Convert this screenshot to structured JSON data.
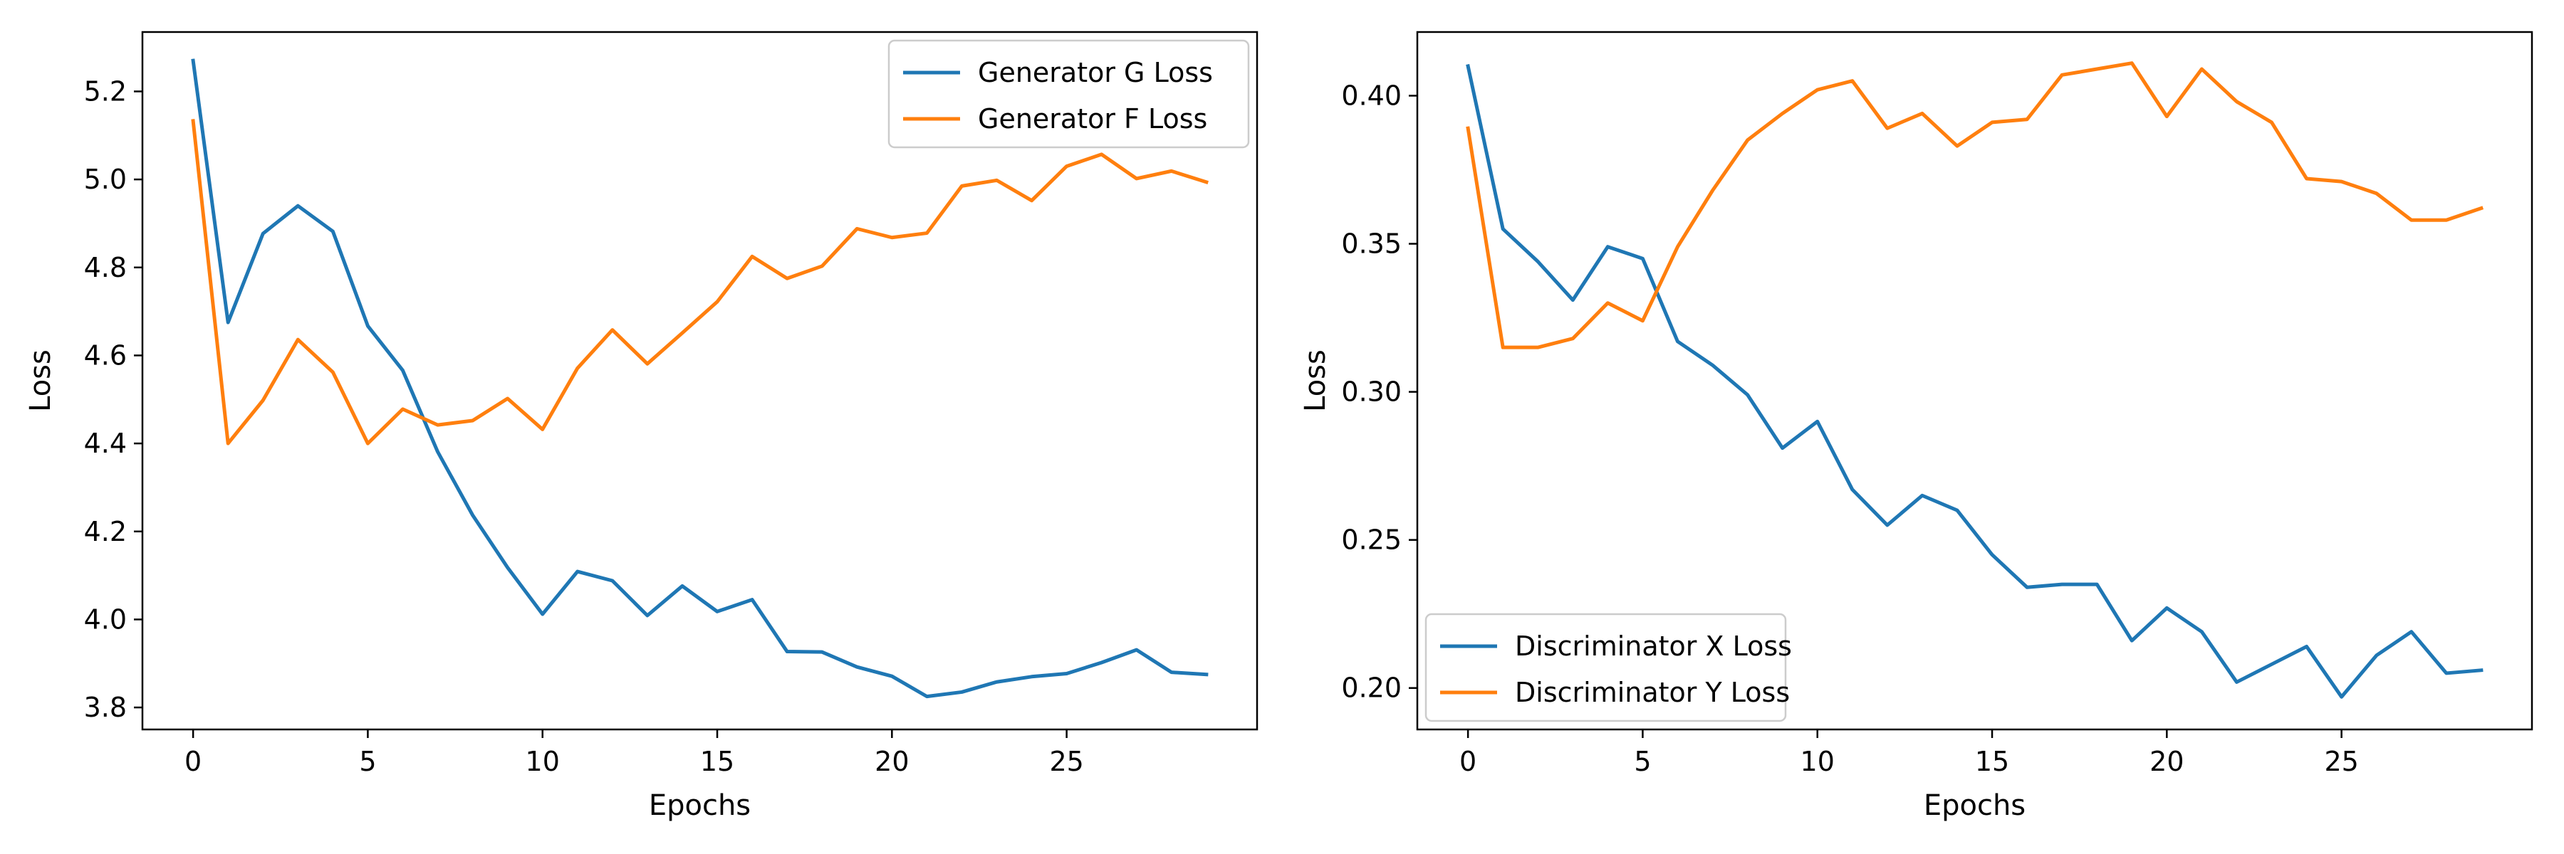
{
  "chart_data": [
    {
      "type": "line",
      "xlabel": "Epochs",
      "ylabel": "Loss",
      "xlim": [
        -1.45,
        30.45
      ],
      "ylim": [
        3.75,
        5.335
      ],
      "xticks": [
        0,
        5,
        10,
        15,
        20,
        25
      ],
      "yticks": [
        3.8,
        4.0,
        4.2,
        4.4,
        4.6,
        4.8,
        5.0,
        5.2
      ],
      "ytick_decimals": 1,
      "grid": false,
      "legend_position": "top-right",
      "x": [
        0,
        1,
        2,
        3,
        4,
        5,
        6,
        7,
        8,
        9,
        10,
        11,
        12,
        13,
        14,
        15,
        16,
        17,
        18,
        19,
        20,
        21,
        22,
        23,
        24,
        25,
        26,
        27,
        28,
        29
      ],
      "series": [
        {
          "name": "Generator G Loss",
          "color": "#1f77b4",
          "values": [
            5.27,
            4.675,
            4.877,
            4.94,
            4.882,
            4.667,
            4.566,
            4.381,
            4.237,
            4.118,
            4.012,
            4.109,
            4.088,
            4.009,
            4.076,
            4.018,
            4.045,
            3.927,
            3.926,
            3.892,
            3.871,
            3.825,
            3.835,
            3.858,
            3.87,
            3.877,
            3.902,
            3.931,
            3.88,
            3.875
          ]
        },
        {
          "name": "Generator F Loss",
          "color": "#ff7f0e",
          "values": [
            5.133,
            4.4,
            4.498,
            4.636,
            4.562,
            4.4,
            4.478,
            4.442,
            4.452,
            4.502,
            4.432,
            4.571,
            4.658,
            4.581,
            4.651,
            4.722,
            4.825,
            4.775,
            4.803,
            4.888,
            4.868,
            4.878,
            4.985,
            4.998,
            4.952,
            5.03,
            5.057,
            5.002,
            5.019,
            4.994
          ]
        }
      ]
    },
    {
      "type": "line",
      "xlabel": "Epochs",
      "ylabel": "Loss",
      "xlim": [
        -1.45,
        30.45
      ],
      "ylim": [
        0.186,
        0.4215
      ],
      "xticks": [
        0,
        5,
        10,
        15,
        20,
        25
      ],
      "yticks": [
        0.2,
        0.25,
        0.3,
        0.35,
        0.4
      ],
      "ytick_decimals": 2,
      "grid": false,
      "legend_position": "bottom-left",
      "x": [
        0,
        1,
        2,
        3,
        4,
        5,
        6,
        7,
        8,
        9,
        10,
        11,
        12,
        13,
        14,
        15,
        16,
        17,
        18,
        19,
        20,
        21,
        22,
        23,
        24,
        25,
        26,
        27,
        28,
        29
      ],
      "series": [
        {
          "name": "Discriminator X Loss",
          "color": "#1f77b4",
          "values": [
            0.41,
            0.355,
            0.344,
            0.331,
            0.349,
            0.345,
            0.317,
            0.309,
            0.299,
            0.281,
            0.29,
            0.267,
            0.255,
            0.265,
            0.26,
            0.245,
            0.234,
            0.235,
            0.235,
            0.216,
            0.227,
            0.219,
            0.202,
            0.208,
            0.214,
            0.197,
            0.211,
            0.219,
            0.205,
            0.206
          ]
        },
        {
          "name": "Discriminator Y Loss",
          "color": "#ff7f0e",
          "values": [
            0.389,
            0.315,
            0.315,
            0.318,
            0.33,
            0.324,
            0.349,
            0.368,
            0.385,
            0.394,
            0.402,
            0.405,
            0.389,
            0.394,
            0.383,
            0.391,
            0.392,
            0.407,
            0.409,
            0.411,
            0.393,
            0.409,
            0.398,
            0.391,
            0.372,
            0.371,
            0.367,
            0.358,
            0.358,
            0.362
          ]
        }
      ]
    }
  ]
}
